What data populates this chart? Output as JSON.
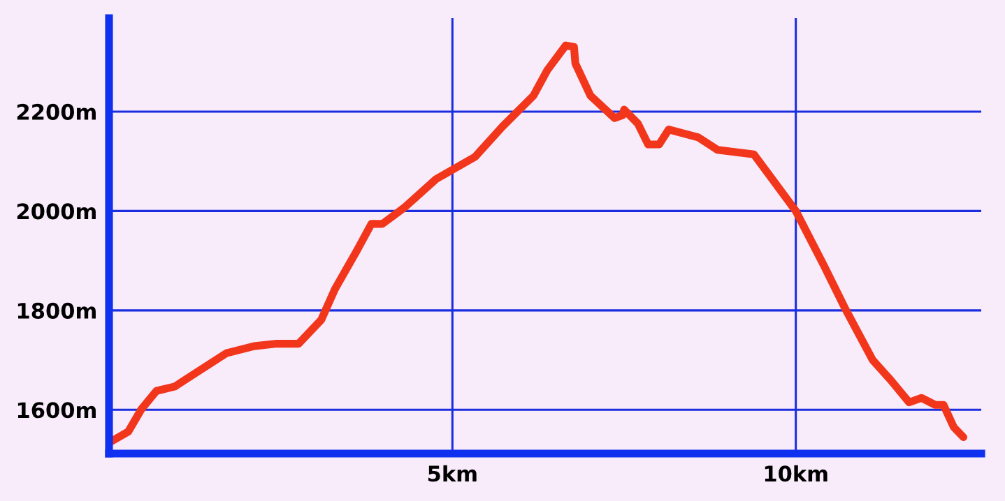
{
  "chart_data": {
    "type": "line",
    "x": [
      0,
      0.28,
      0.47,
      0.69,
      0.96,
      1.26,
      1.71,
      2.11,
      2.44,
      2.76,
      3.09,
      3.29,
      3.6,
      3.82,
      3.98,
      4.31,
      4.76,
      5.33,
      5.73,
      6.18,
      6.38,
      6.65,
      6.77,
      6.79,
      7.01,
      7.36,
      7.48,
      7.5,
      7.7,
      7.85,
      8.01,
      8.15,
      8.58,
      8.86,
      9.39,
      10,
      10.41,
      10.71,
      11.12,
      11.38,
      11.65,
      11.83,
      12.03,
      12.15,
      12.3,
      12.44
    ],
    "series": [
      {
        "color": "#f2361c",
        "values": [
          1534,
          1556,
          1601,
          1638,
          1647,
          1674,
          1714,
          1728,
          1733,
          1733,
          1781,
          1843,
          1918,
          1974,
          1974,
          2008,
          2064,
          2109,
          2170,
          2232,
          2283,
          2333,
          2330,
          2297,
          2232,
          2187,
          2193,
          2204,
          2176,
          2134,
          2134,
          2164,
          2148,
          2123,
          2114,
          2000,
          1890,
          1806,
          1700,
          1660,
          1615,
          1624,
          1610,
          1610,
          1565,
          1545
        ]
      }
    ],
    "xlim": [
      0,
      12.7
    ],
    "ylim": [
      1512,
      2388
    ],
    "xticks": [
      {
        "value": 5,
        "label": "5km"
      },
      {
        "value": 10,
        "label": "10km"
      }
    ],
    "yticks": [
      {
        "value": 1600,
        "label": "1600m"
      },
      {
        "value": 1800,
        "label": "1800m"
      },
      {
        "value": 2000,
        "label": "2000m"
      },
      {
        "value": 2200,
        "label": "2200m"
      }
    ],
    "grid": true,
    "marker": "none",
    "line_style": "solid"
  }
}
